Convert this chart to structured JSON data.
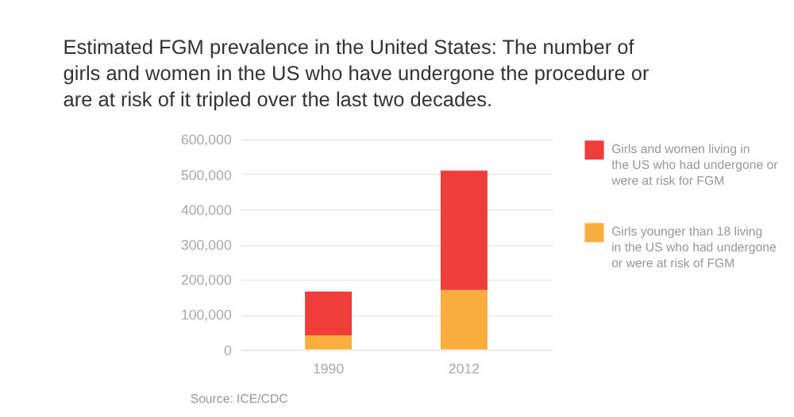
{
  "chart_data": {
    "type": "bar",
    "title": "Estimated FGM prevalence in the United States: The number of girls and women in the US who have undergone the procedure or are at risk of it tripled over the last two decades.",
    "categories": [
      "1990",
      "2012"
    ],
    "stacked": true,
    "series": [
      {
        "name": "Girls younger than 18 living in the US who had undergone or were at risk of FGM",
        "color": "#fbae40",
        "values": [
          40000,
          170000
        ]
      },
      {
        "name": "Girls and women living in the US who had undergone or were at risk for FGM",
        "color": "#ef3d3a",
        "values": [
          125000,
          340000
        ]
      }
    ],
    "ylim": [
      0,
      600000
    ],
    "yticks": [
      0,
      {
        "value": 100000,
        "label": "100,000"
      },
      {
        "value": 200000,
        "label": "200,000"
      },
      {
        "value": 300000,
        "label": "300,000"
      },
      {
        "value": 400000,
        "label": "400,000"
      },
      {
        "value": 500000,
        "label": "500,000"
      },
      {
        "value": 600000,
        "label": "600,000"
      }
    ],
    "grid": "y",
    "legend": "right",
    "annotations": [
      "Source: ICE/CDC"
    ]
  }
}
